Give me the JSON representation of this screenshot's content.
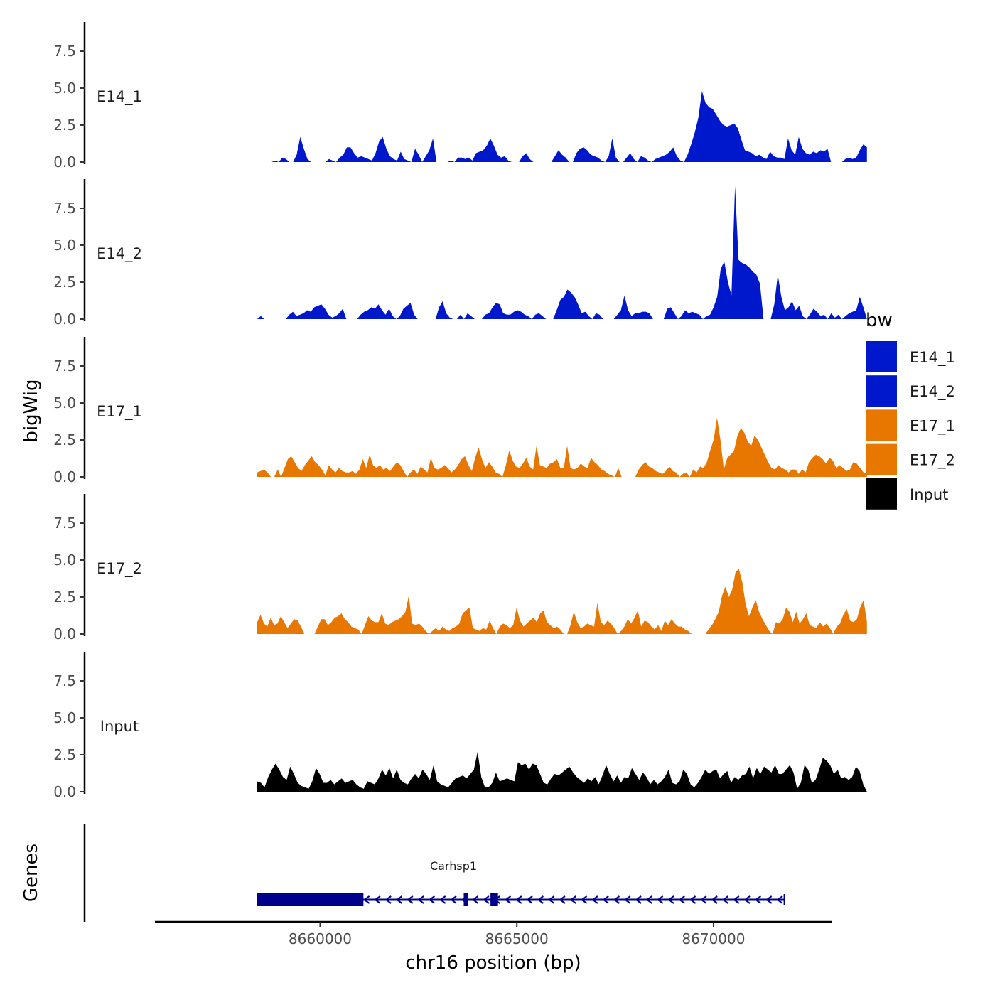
{
  "chart_data": {
    "type": "area",
    "title": "",
    "ylabel": "bigWig",
    "genes_label": "Genes",
    "xlabel": "chr16 position (bp)",
    "x_range": [
      8655800,
      8673000
    ],
    "x_ticks": [
      8660000,
      8665000,
      8670000
    ],
    "x_tick_labels": [
      "8660000",
      "8665000",
      "8670000"
    ],
    "ylim": [
      0,
      9.5
    ],
    "y_ticks": [
      0,
      2.5,
      5,
      7.5
    ],
    "y_tick_labels": [
      "0.0",
      "2.5",
      "5.0",
      "7.5"
    ],
    "track_start": 8658400,
    "track_end": 8673900,
    "legend_title": "bw",
    "series": [
      {
        "name": "E14_1",
        "color": "#0018cc",
        "values": [
          0,
          0,
          0,
          0,
          0,
          0.1,
          0,
          0.3,
          0.2,
          0,
          0,
          0.5,
          1.7,
          0.9,
          0.2,
          0,
          0,
          0,
          0,
          0,
          0.2,
          0.1,
          0,
          0.3,
          0.5,
          1,
          1,
          0.6,
          0.3,
          0.4,
          0.3,
          0.2,
          0.1,
          0.6,
          1.4,
          1.7,
          0.9,
          0.4,
          0.2,
          0.1,
          0.7,
          0.2,
          0.1,
          0,
          0.9,
          0.5,
          0,
          0.4,
          0.8,
          1.6,
          0,
          0,
          0,
          0,
          0.1,
          0,
          0.3,
          0.3,
          0.2,
          0.3,
          0.1,
          0.6,
          0.7,
          0.8,
          1.1,
          1.6,
          1.1,
          0.5,
          0.3,
          0.4,
          0.1,
          0,
          0,
          0,
          0.4,
          0.6,
          0.2,
          0,
          0,
          0,
          0,
          0,
          0,
          0.4,
          0.8,
          0.5,
          0.3,
          0,
          0,
          0.6,
          0.9,
          1,
          0.8,
          0.5,
          0.4,
          0.3,
          0.1,
          0,
          0.4,
          1.6,
          0.3,
          0,
          0,
          0.3,
          0.6,
          0.2,
          0,
          0.4,
          0.3,
          0.1,
          0,
          0.2,
          0.3,
          0.4,
          0.5,
          0.7,
          1,
          0.4,
          0.1,
          0,
          0.5,
          1.2,
          2,
          3,
          4.8,
          4,
          3.7,
          3.6,
          3.2,
          2.8,
          2.5,
          2.4,
          2.5,
          2.6,
          2.3,
          1.5,
          0.8,
          0.7,
          0.6,
          0.4,
          0.5,
          0.3,
          0.2,
          0.7,
          0.4,
          0.3,
          0.3,
          0.2,
          1.6,
          0.8,
          0.5,
          1.7,
          0.9,
          0.6,
          0.5,
          0.7,
          0.6,
          0.8,
          0.7,
          0.9,
          0,
          0,
          0,
          0,
          0.2,
          0.3,
          0.2,
          0.3,
          0.8,
          1.2,
          1
        ]
      },
      {
        "name": "E14_2",
        "color": "#0018cc",
        "values": [
          0,
          0.2,
          0,
          0,
          0,
          0,
          0,
          0,
          0,
          0.3,
          0.5,
          0.2,
          0.3,
          0.4,
          0.6,
          0.5,
          0.8,
          0.9,
          1,
          0.7,
          0.3,
          0.1,
          0.2,
          0.4,
          0.7,
          0,
          0,
          0,
          0,
          0.3,
          0.5,
          0.6,
          0.8,
          0.7,
          1,
          0.6,
          0.3,
          0.7,
          0.2,
          0,
          0.2,
          0.7,
          0.9,
          1.1,
          0.3,
          0,
          0,
          0,
          0,
          0,
          0,
          0.8,
          1.2,
          0.4,
          0.1,
          0,
          0,
          0.3,
          0,
          0.4,
          0.2,
          0,
          0,
          0,
          0.3,
          0.4,
          0.8,
          1.1,
          1,
          0.4,
          0.3,
          0.3,
          0.5,
          0.6,
          0.5,
          0.3,
          0.2,
          0,
          0.3,
          0.4,
          0.2,
          0,
          0,
          0,
          0.6,
          1.3,
          1.5,
          2,
          1.8,
          1.5,
          1,
          0.4,
          0.5,
          0.2,
          0,
          0.4,
          0.3,
          0,
          0,
          0,
          0,
          0.3,
          0.6,
          1.6,
          0.6,
          0.2,
          0.4,
          0.4,
          0.5,
          0.5,
          0.4,
          0,
          0,
          0,
          0,
          0.7,
          0.8,
          0.4,
          0,
          0.2,
          0.6,
          0.4,
          0.5,
          0.4,
          0.3,
          0,
          0.2,
          0.3,
          0.8,
          1.5,
          3.4,
          3.9,
          2.5,
          1.6,
          9,
          4,
          3.8,
          3.7,
          3.5,
          3.2,
          3,
          2.4,
          0,
          0,
          0,
          1,
          3,
          1.5,
          0.6,
          0.8,
          1.2,
          0.6,
          0.9,
          0.2,
          0,
          0.3,
          0.7,
          0.5,
          0.2,
          0.3,
          0,
          0.4,
          0.1,
          0.3,
          0,
          0.2,
          0.4,
          0.5,
          0.6,
          1.5,
          0.8,
          0
        ]
      },
      {
        "name": "E17_1",
        "color": "#e87700",
        "values": [
          0.3,
          0.4,
          0.5,
          0.3,
          0,
          0,
          0.5,
          0,
          0.6,
          1.2,
          1.4,
          1,
          0.6,
          0.4,
          0.8,
          1.1,
          1.4,
          1,
          0.8,
          0.5,
          0.1,
          0.8,
          0.5,
          0.3,
          0.6,
          0.4,
          0.3,
          0.3,
          0.4,
          0.2,
          0.5,
          1.2,
          0.6,
          1.5,
          0.8,
          0.6,
          0.8,
          0.5,
          0.6,
          0.4,
          0.7,
          1,
          0.8,
          0.4,
          0,
          0.3,
          0.5,
          0.2,
          0.7,
          0.5,
          0.3,
          1.3,
          0.6,
          0.5,
          0.6,
          0.8,
          0.6,
          0.3,
          0.5,
          0.8,
          1.2,
          1.4,
          0.8,
          0.4,
          1.3,
          2,
          1.2,
          0.6,
          1,
          0.7,
          0.3,
          0.2,
          0,
          0.8,
          1.8,
          1.1,
          0.7,
          0.6,
          0.9,
          1.3,
          0.7,
          0.5,
          2.1,
          0.8,
          0.7,
          0.6,
          0.9,
          1,
          1.2,
          0.6,
          0.6,
          2.1,
          0.6,
          0.5,
          0.6,
          0.9,
          0.7,
          0.6,
          1.3,
          1,
          0.8,
          0.5,
          0.4,
          0.2,
          0.1,
          0,
          0.6,
          0,
          0,
          0,
          0,
          0,
          0.5,
          0.8,
          1,
          0.7,
          0.6,
          0.4,
          0.3,
          0.2,
          0.4,
          0.7,
          0.4,
          0.3,
          0,
          0.2,
          0.3,
          0,
          0.5,
          0.3,
          0.7,
          0.6,
          1,
          1.8,
          2.5,
          4,
          2.5,
          0.5,
          1.3,
          1.5,
          1.8,
          2.8,
          3.3,
          3,
          2.4,
          2.1,
          2.8,
          2.5,
          2,
          1.5,
          1,
          0.6,
          0.5,
          0.8,
          0.6,
          0.5,
          0.3,
          0.5,
          0.5,
          0.2,
          0.5,
          0.3,
          1,
          1.3,
          1.5,
          1.4,
          1.2,
          0.9,
          1.3,
          1.1,
          0.6,
          0.8,
          0.6,
          0.4,
          0.5,
          1,
          0.9,
          0.6,
          0.3,
          0.2
        ]
      },
      {
        "name": "E17_2",
        "color": "#e87700",
        "values": [
          0.8,
          1.3,
          0.7,
          0.5,
          1.1,
          0.6,
          0.7,
          1.2,
          0.8,
          0.4,
          0.7,
          1,
          0.9,
          0.5,
          0,
          0,
          0,
          0,
          0.5,
          1,
          1,
          0.6,
          0.8,
          1.1,
          1.2,
          1.4,
          1,
          0.8,
          0.5,
          0.4,
          0.3,
          0,
          0.6,
          1.2,
          0.9,
          0.8,
          0.8,
          1.4,
          0.7,
          0.6,
          0.8,
          0.9,
          1,
          1.2,
          1.5,
          2.6,
          0.7,
          0.6,
          0.7,
          0.5,
          0.2,
          0,
          0.2,
          0.4,
          0.2,
          0.5,
          0.3,
          0.2,
          0.4,
          0.5,
          0.7,
          1.4,
          1.6,
          1.8,
          0.4,
          0.3,
          0.2,
          0.4,
          0.3,
          0.9,
          0.4,
          0,
          0.5,
          0.7,
          0.6,
          0.4,
          0.6,
          1.8,
          0.9,
          0.5,
          0.7,
          0.9,
          1.1,
          0.8,
          1.4,
          1.6,
          0.8,
          0.6,
          0.4,
          0.5,
          0.3,
          0,
          0,
          0.6,
          1.5,
          0.8,
          0.4,
          0.5,
          0.7,
          0.6,
          0.5,
          2.1,
          0.8,
          0.6,
          0.9,
          0.7,
          0.4,
          0,
          0.2,
          0.5,
          1,
          0.7,
          1.1,
          1.6,
          0.5,
          0.9,
          0.8,
          0.5,
          0.3,
          0.6,
          0.2,
          0.9,
          0.6,
          1,
          0.7,
          0.5,
          0.5,
          0.3,
          0.2,
          0,
          0,
          0,
          0,
          0,
          0.3,
          0.6,
          1,
          1.5,
          2.6,
          3.2,
          2.5,
          3,
          4.2,
          4.4,
          3.5,
          2,
          1.2,
          1.8,
          2.3,
          1.5,
          1,
          0.6,
          0.2,
          0,
          0.8,
          0.7,
          1,
          1.8,
          1.5,
          0.8,
          1.5,
          0.7,
          1,
          1.4,
          0.6,
          0.5,
          0.4,
          0.8,
          0.5,
          0.7,
          0.4,
          0,
          0.5,
          0.7,
          1.3,
          1.7,
          0.9,
          0.8,
          1,
          1.8,
          2.3,
          0.8
        ]
      },
      {
        "name": "Input",
        "color": "#000000",
        "values": [
          0.7,
          0.6,
          0.3,
          1,
          1.5,
          1.9,
          1.5,
          1,
          0.8,
          1.7,
          1.2,
          0.6,
          0.4,
          0.3,
          0.2,
          0.7,
          1.6,
          1.2,
          0.6,
          0.6,
          0.8,
          0.5,
          0.7,
          0.9,
          0.6,
          0.7,
          0.8,
          0.5,
          0.3,
          0.2,
          0.7,
          0.6,
          0.5,
          0.9,
          1.5,
          1.1,
          1.6,
          0.9,
          1.5,
          0.8,
          0.6,
          0.5,
          0.9,
          1.2,
          0.9,
          1.5,
          1.2,
          0.8,
          1.8,
          0.7,
          0.5,
          0.4,
          0.3,
          0.6,
          0.9,
          1,
          1.1,
          0.9,
          1.2,
          1.5,
          2.7,
          1,
          0.3,
          0.3,
          0.6,
          1.3,
          0.7,
          0.8,
          0.9,
          0.8,
          0.7,
          2,
          1.8,
          1.9,
          1.5,
          1.9,
          1.8,
          1.2,
          0.6,
          0.5,
          0.9,
          1.2,
          1.1,
          1.3,
          1.5,
          1.7,
          1.3,
          1,
          0.8,
          0.6,
          0.9,
          0.7,
          1,
          0.5,
          1.1,
          1.8,
          1.2,
          0.7,
          1.1,
          0.6,
          1,
          0.9,
          1.6,
          1.2,
          0.8,
          1.3,
          1,
          0.5,
          0.8,
          0.5,
          0.7,
          1,
          1.5,
          0.6,
          0.5,
          0.7,
          1.5,
          1.2,
          0.5,
          0.3,
          0.6,
          1,
          1.5,
          1.2,
          1.4,
          1.5,
          0.9,
          1.2,
          1.4,
          0.6,
          1,
          0.8,
          1.1,
          1.2,
          1.7,
          0.9,
          1.6,
          1.2,
          1.7,
          1.5,
          1.3,
          1.8,
          1.2,
          1.2,
          1.5,
          1.8,
          1.3,
          0.2,
          0.6,
          1.8,
          1.5,
          0.6,
          0.8,
          1.5,
          2.3,
          2.1,
          1.8,
          1.2,
          1.5,
          0.9,
          1,
          0.8,
          1,
          1.7,
          1.4,
          0.5,
          0
        ]
      }
    ],
    "genes": [
      {
        "name": "Carhsp1",
        "strand": "-",
        "start": 8658400,
        "end": 8671800,
        "color": "#00008b",
        "exons": [
          [
            8658400,
            8661100
          ],
          [
            8663650,
            8663750
          ],
          [
            8664330,
            8664520
          ]
        ]
      }
    ]
  }
}
